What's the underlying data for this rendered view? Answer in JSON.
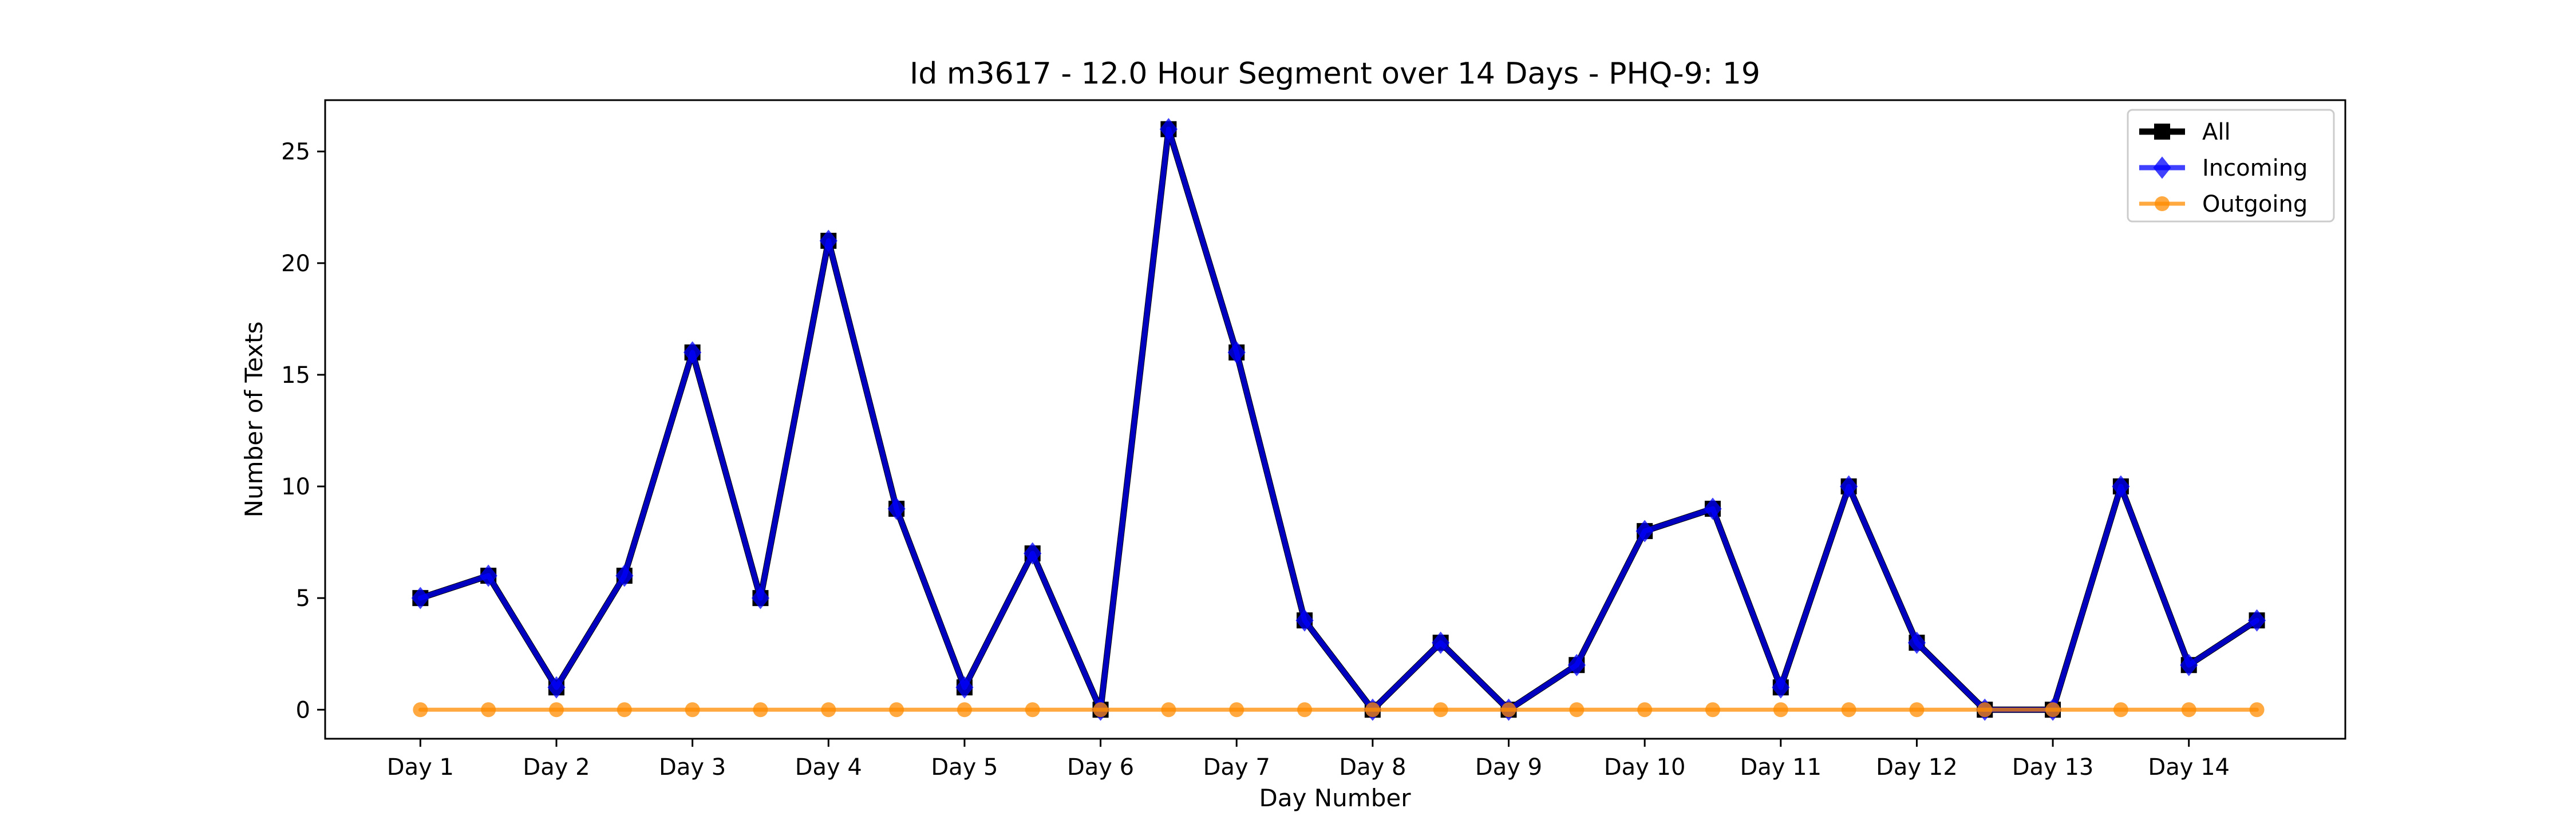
{
  "chart_data": {
    "type": "line",
    "title": "Id m3617 - 12.0 Hour Segment over 14 Days - PHQ-9: 19",
    "xlabel": "Day Number",
    "ylabel": "Number of Texts",
    "categories": [
      "Day 1",
      "Day 2",
      "Day 3",
      "Day 4",
      "Day 5",
      "Day 6",
      "Day 7",
      "Day 8",
      "Day 9",
      "Day 10",
      "Day 11",
      "Day 12",
      "Day 13",
      "Day 14"
    ],
    "x": [
      1,
      1.5,
      2,
      2.5,
      3,
      3.5,
      4,
      4.5,
      5,
      5.5,
      6,
      6.5,
      7,
      7.5,
      8,
      8.5,
      9,
      9.5,
      10,
      10.5,
      11,
      11.5,
      12,
      12.5,
      13,
      13.5,
      14,
      14.5
    ],
    "xlim": [
      0.3,
      15.15
    ],
    "ylim": [
      -1.3,
      27.3
    ],
    "yticks": [
      0,
      5,
      10,
      15,
      20,
      25
    ],
    "grid": false,
    "legend_position": "top-right",
    "series": [
      {
        "name": "All",
        "color": "#000000",
        "marker": "square",
        "values": [
          5,
          6,
          1,
          6,
          16,
          5,
          21,
          9,
          1,
          7,
          0,
          26,
          16,
          4,
          0,
          3,
          0,
          2,
          8,
          9,
          1,
          10,
          3,
          0,
          0,
          10,
          2,
          4
        ]
      },
      {
        "name": "Incoming",
        "color": "#0000ff",
        "marker": "diamond",
        "values": [
          5,
          6,
          1,
          6,
          16,
          5,
          21,
          9,
          1,
          7,
          0,
          26,
          16,
          4,
          0,
          3,
          0,
          2,
          8,
          9,
          1,
          10,
          3,
          0,
          0,
          10,
          2,
          4
        ]
      },
      {
        "name": "Outgoing",
        "color": "#ff8c00",
        "marker": "circle",
        "values": [
          0,
          0,
          0,
          0,
          0,
          0,
          0,
          0,
          0,
          0,
          0,
          0,
          0,
          0,
          0,
          0,
          0,
          0,
          0,
          0,
          0,
          0,
          0,
          0,
          0,
          0,
          0,
          0
        ]
      }
    ]
  }
}
